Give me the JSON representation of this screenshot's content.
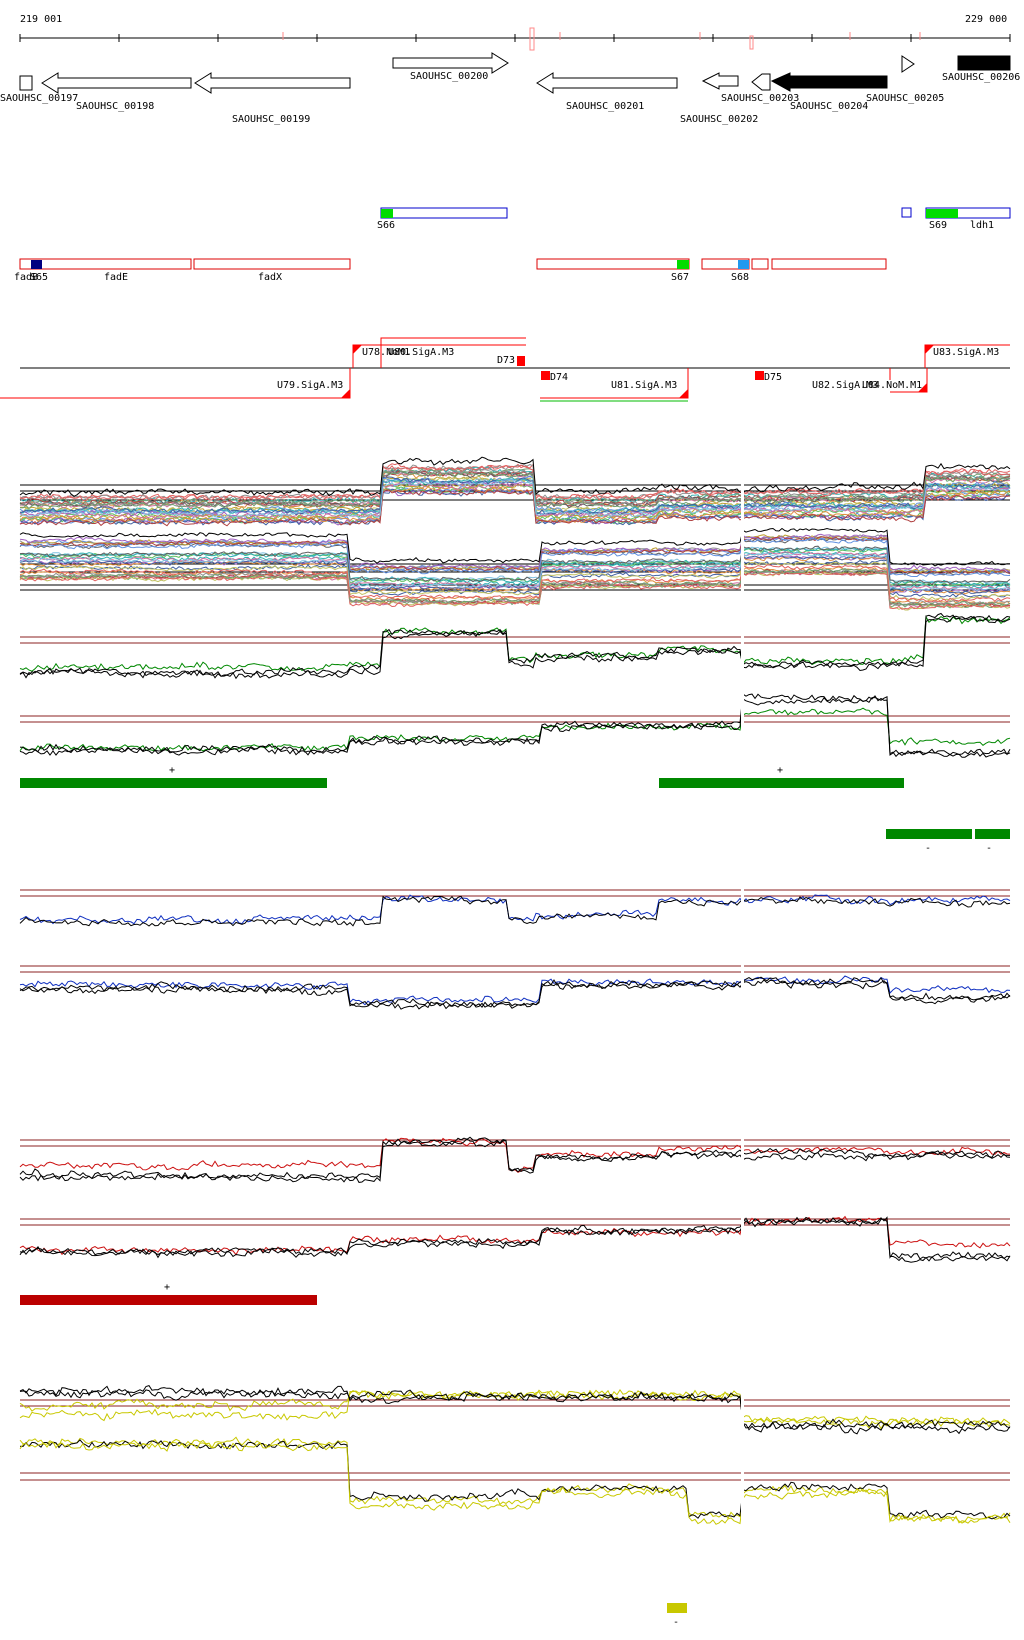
{
  "ruler": {
    "start_label": "219 001",
    "end_label": "229 000"
  },
  "genes": [
    {
      "label": "SAOUHSC_00197",
      "dir": "right",
      "filled": false
    },
    {
      "label": "SAOUHSC_00198",
      "dir": "left",
      "filled": false
    },
    {
      "label": "SAOUHSC_00199",
      "dir": "left",
      "filled": false
    },
    {
      "label": "SAOUHSC_00200",
      "dir": "right",
      "filled": false
    },
    {
      "label": "SAOUHSC_00201",
      "dir": "left",
      "filled": false
    },
    {
      "label": "SAOUHSC_00202",
      "dir": "left",
      "filled": false
    },
    {
      "label": "SAOUHSC_00203",
      "dir": "left",
      "filled": false
    },
    {
      "label": "SAOUHSC_00204",
      "dir": "left",
      "filled": true
    },
    {
      "label": "SAOUHSC_00205",
      "dir": "right",
      "filled": false
    },
    {
      "label": "SAOUHSC_00206",
      "dir": "right",
      "filled": true
    }
  ],
  "operons_plus": [
    {
      "label": "S66",
      "color": "#00dd00"
    },
    {
      "label": "S69",
      "color": "#00dd00"
    },
    {
      "label": "ldh1",
      "color": ""
    }
  ],
  "operons_minus": [
    {
      "label": "fadB",
      "color": ""
    },
    {
      "label": "S65",
      "color": "#000080"
    },
    {
      "label": "fadE",
      "color": ""
    },
    {
      "label": "fadX",
      "color": ""
    },
    {
      "label": "S67",
      "color": "#00dd00"
    },
    {
      "label": "S68",
      "color": "#2299ee"
    }
  ],
  "tss": [
    {
      "label": "U78.NoM1",
      "strand": "+"
    },
    {
      "label": "U80.SigA.M3",
      "strand": "+"
    },
    {
      "label": "D73",
      "strand": "+"
    },
    {
      "label": "U83.SigA.M3",
      "strand": "+"
    },
    {
      "label": "U79.SigA.M3",
      "strand": "-"
    },
    {
      "label": "D74",
      "strand": "-"
    },
    {
      "label": "U81.SigA.M3",
      "strand": "-"
    },
    {
      "label": "D75",
      "strand": "-"
    },
    {
      "label": "U82.SigA.M3",
      "strand": "-"
    },
    {
      "label": "U84.NoM.M1",
      "strand": "-"
    }
  ],
  "significance_marks": [
    {
      "label": "+",
      "color": "#008800"
    },
    {
      "label": "+",
      "color": "#008800"
    },
    {
      "label": "-",
      "color": "#008800"
    },
    {
      "label": "-",
      "color": "#008800"
    },
    {
      "label": "+",
      "color": "#bb0000"
    },
    {
      "label": "-",
      "color": "#c8c800"
    }
  ],
  "track_colors": {
    "gene_outline": "#000000",
    "operon_outline_plus": "#0000cc",
    "operon_outline_minus": "#dd0000",
    "tss_flag": "#ff0000",
    "threshold": "#8b2020",
    "green_series": "#008800",
    "blue_series": "#1030c0",
    "red_series": "#cc1010",
    "yellow_series": "#c8c800"
  }
}
